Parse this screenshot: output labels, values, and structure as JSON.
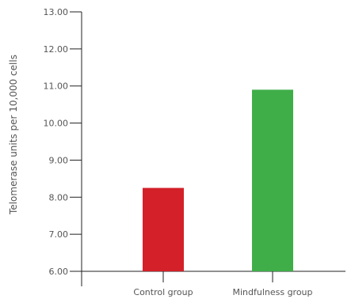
{
  "chart_data": {
    "type": "bar",
    "ylabel": "Telomerase units per 10,000 cells",
    "xlabel": "",
    "categories": [
      "Control group",
      "Mindfulness group"
    ],
    "values": [
      8.25,
      10.9
    ],
    "ylim": [
      6.0,
      13.0
    ],
    "yticks": [
      "6.00",
      "7.00",
      "8.00",
      "9.00",
      "10.00",
      "11.00",
      "12.00",
      "13.00"
    ],
    "colors": [
      "#d32029",
      "#3fae49"
    ],
    "grid": false,
    "legend": "none"
  }
}
